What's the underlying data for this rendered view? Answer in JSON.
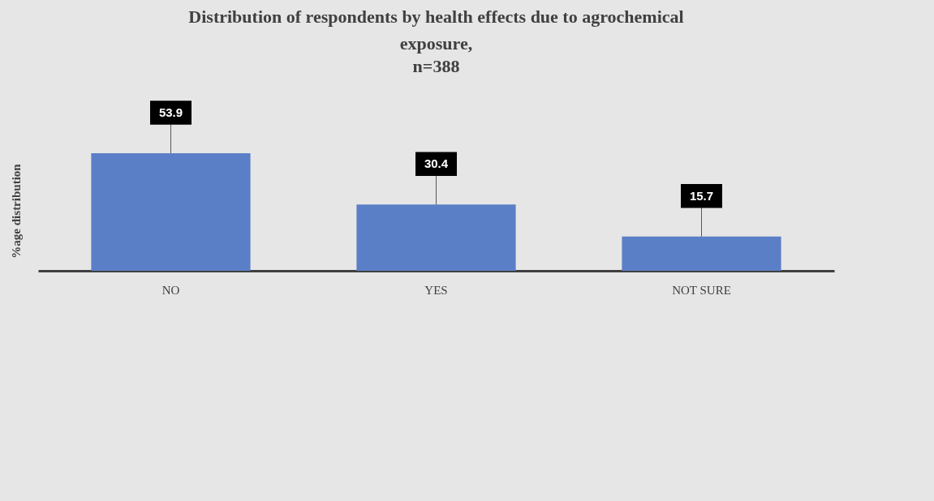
{
  "chart_data": {
    "type": "bar",
    "title": "Distribution of respondents by health effects due to agrochemical exposure,",
    "subtitle": "n=388",
    "ylabel": "%age distribution",
    "categories": [
      "NO",
      "YES",
      "NOT SURE"
    ],
    "values": [
      53.9,
      30.4,
      15.7
    ],
    "color": "#5b7fc7",
    "data_labels": true,
    "grid": false
  }
}
